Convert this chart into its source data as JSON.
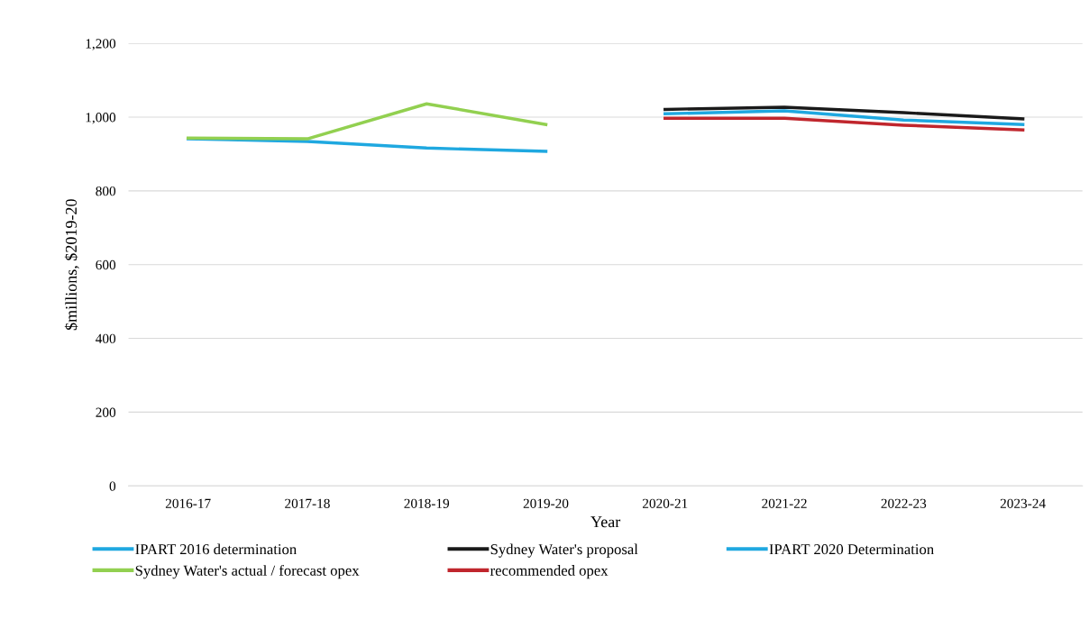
{
  "chart_data": {
    "type": "line",
    "xlabel": "Year",
    "ylabel": "$millions, $2019-20",
    "categories": [
      "2016-17",
      "2017-18",
      "2018-19",
      "2019-20",
      "2020-21",
      "2021-22",
      "2022-23",
      "2023-24"
    ],
    "series": [
      {
        "name": "IPART 2016 determination",
        "color": "#1fa8e0",
        "values": [
          941,
          934,
          916,
          907,
          null,
          null,
          null,
          null
        ]
      },
      {
        "name": "Sydney Water's actual / forecast opex",
        "color": "#92d050",
        "values": [
          943,
          941,
          1036,
          980,
          null,
          null,
          null,
          null
        ]
      },
      {
        "name": "Sydney Water's proposal",
        "color": "#1a1a1a",
        "values": [
          null,
          null,
          null,
          null,
          1021,
          1027,
          1012,
          995
        ]
      },
      {
        "name": "recommended opex",
        "color": "#c0262d",
        "values": [
          null,
          null,
          null,
          null,
          997,
          997,
          978,
          965
        ]
      },
      {
        "name": "IPART 2020 Determination",
        "color": "#1fa8e0",
        "values": [
          null,
          null,
          null,
          null,
          1009,
          1017,
          992,
          980
        ]
      }
    ],
    "ylim": [
      0,
      1200
    ],
    "yticks": [
      0,
      200,
      400,
      600,
      800,
      {
        "value": 1000,
        "label": "1,000"
      },
      {
        "value": 1200,
        "label": "1,200"
      }
    ],
    "grid": "y",
    "legend": "bottom",
    "marker": "none",
    "line_style": "solid"
  }
}
